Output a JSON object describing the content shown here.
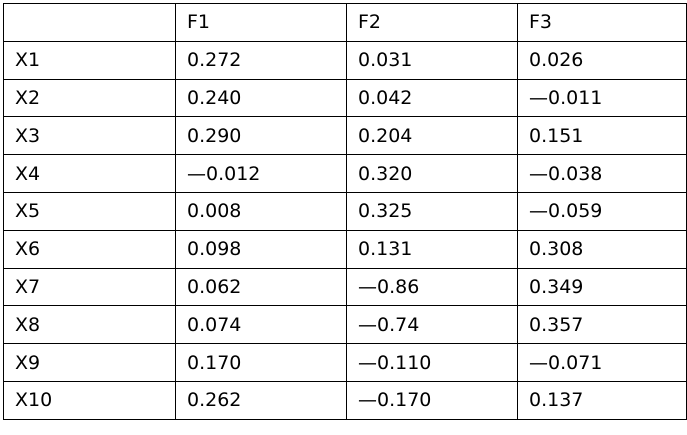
{
  "table": {
    "header": [
      "F1",
      "F2",
      "F3"
    ],
    "rows": [
      [
        "X1",
        "0.272",
        "0.031",
        "0.026"
      ],
      [
        "X2",
        "0.240",
        "0.042",
        "—0.011"
      ],
      [
        "X3",
        "0.290",
        "0.204",
        "0.151"
      ],
      [
        "X4",
        "—0.012",
        "0.320",
        "—0.038"
      ],
      [
        "X5",
        "0.008",
        "0.325",
        "—0.059"
      ],
      [
        "X6",
        "0.098",
        "0.131",
        "0.308"
      ],
      [
        "X7",
        "0.062",
        "—0.86",
        "0.349"
      ],
      [
        "X8",
        "0.074",
        "—0.74",
        "0.357"
      ],
      [
        "X9",
        "0.170",
        "—0.110",
        "—0.071"
      ],
      [
        "X10",
        "0.262",
        "—0.170",
        "0.137"
      ]
    ]
  }
}
